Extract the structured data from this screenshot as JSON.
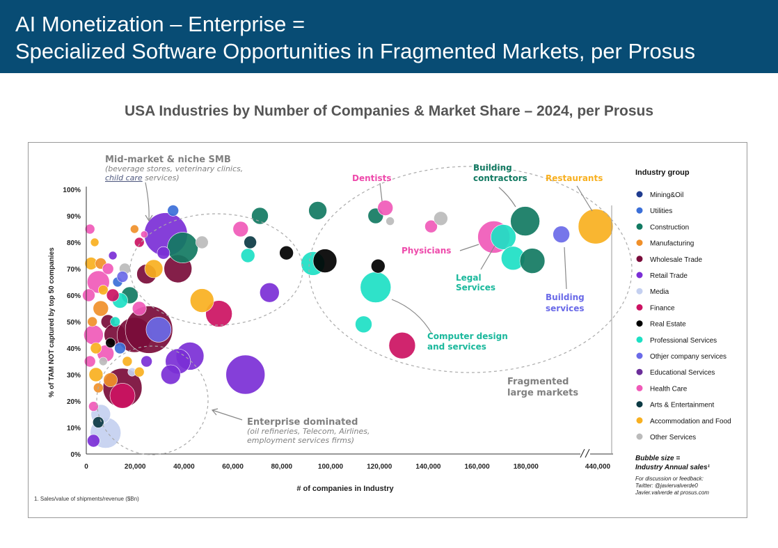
{
  "header": {
    "line1": "AI Monetization – Enterprise =",
    "line2": "Specialized Software Opportunities in Fragmented Markets, per Prosus"
  },
  "chart_data": {
    "type": "scatter",
    "title": "USA Industries by Number of Companies & Market Share – 2024, per Prosus",
    "xlabel": "# of companies in Industry",
    "ylabel": "% of TAM NOT captured by top 50 companies",
    "x_ticks": [
      "0",
      "20,000",
      "40,000",
      "60,000",
      "80,000",
      "100,000",
      "120,000",
      "140,000",
      "160,000",
      "180,000",
      "440,000"
    ],
    "y_ticks": [
      "0%",
      "10%",
      "20%",
      "30%",
      "40%",
      "50%",
      "60%",
      "70%",
      "80%",
      "90%",
      "100%"
    ],
    "xlim": [
      0,
      440000
    ],
    "ylim": [
      0,
      100
    ],
    "grid": false,
    "legend_title": "Industry group",
    "legend_position": "right",
    "series": [
      {
        "name": "Mining&Oil",
        "color": "#1f3b8f"
      },
      {
        "name": "Utilities",
        "color": "#3b6fd8"
      },
      {
        "name": "Construction",
        "color": "#127a62"
      },
      {
        "name": "Manufacturing",
        "color": "#f0902a"
      },
      {
        "name": "Wholesale Trade",
        "color": "#7a0c3a"
      },
      {
        "name": "Retail Trade",
        "color": "#7b2fd6"
      },
      {
        "name": "Media",
        "color": "#c4d0f0"
      },
      {
        "name": "Finance",
        "color": "#cc1262"
      },
      {
        "name": "Real Estate",
        "color": "#000000"
      },
      {
        "name": "Professional Services",
        "color": "#1de0c4"
      },
      {
        "name": "Othjer company services",
        "color": "#6a6ae8"
      },
      {
        "name": "Educational Services",
        "color": "#6b2e9a"
      },
      {
        "name": "Health Care",
        "color": "#f05ab8"
      },
      {
        "name": "Arts & Entertainment",
        "color": "#0c3a44"
      },
      {
        "name": "Accommodation and Food",
        "color": "#f8b020"
      },
      {
        "name": "Other Services",
        "color": "#bbbbbb"
      }
    ],
    "bubbles": [
      {
        "x": 5000,
        "y": 65,
        "r": 16,
        "s": 12
      },
      {
        "x": 3000,
        "y": 45,
        "r": 14,
        "s": 12
      },
      {
        "x": 8000,
        "y": 38,
        "r": 12,
        "s": 12
      },
      {
        "x": 4000,
        "y": 30,
        "r": 10,
        "s": 14
      },
      {
        "x": 6000,
        "y": 55,
        "r": 11,
        "s": 3
      },
      {
        "x": 2000,
        "y": 72,
        "r": 9,
        "s": 14
      },
      {
        "x": 9000,
        "y": 50,
        "r": 10,
        "s": 4
      },
      {
        "x": 12000,
        "y": 45,
        "r": 16,
        "s": 4
      },
      {
        "x": 15000,
        "y": 25,
        "r": 28,
        "s": 4
      },
      {
        "x": 20000,
        "y": 45,
        "r": 25,
        "s": 4
      },
      {
        "x": 26000,
        "y": 47,
        "r": 34,
        "s": 4
      },
      {
        "x": 33000,
        "y": 83,
        "r": 31,
        "s": 5
      },
      {
        "x": 38000,
        "y": 70,
        "r": 20,
        "s": 4
      },
      {
        "x": 40000,
        "y": 78,
        "r": 22,
        "s": 2
      },
      {
        "x": 43000,
        "y": 37,
        "r": 20,
        "s": 5
      },
      {
        "x": 38000,
        "y": 35,
        "r": 18,
        "s": 5
      },
      {
        "x": 35000,
        "y": 30,
        "r": 14,
        "s": 5
      },
      {
        "x": 30000,
        "y": 47,
        "r": 18,
        "s": 10
      },
      {
        "x": 66000,
        "y": 30,
        "r": 28,
        "s": 5
      },
      {
        "x": 55000,
        "y": 53,
        "r": 19,
        "s": 7
      },
      {
        "x": 48000,
        "y": 58,
        "r": 17,
        "s": 14
      },
      {
        "x": 8000,
        "y": 8,
        "r": 22,
        "s": 6
      },
      {
        "x": 6000,
        "y": 15,
        "r": 14,
        "s": 6
      },
      {
        "x": 15000,
        "y": 22,
        "r": 18,
        "s": 7
      },
      {
        "x": 10000,
        "y": 28,
        "r": 10,
        "s": 3
      },
      {
        "x": 5000,
        "y": 12,
        "r": 8,
        "s": 13
      },
      {
        "x": 3000,
        "y": 5,
        "r": 9,
        "s": 5
      },
      {
        "x": 18000,
        "y": 60,
        "r": 12,
        "s": 2
      },
      {
        "x": 14000,
        "y": 58,
        "r": 11,
        "s": 9
      },
      {
        "x": 22000,
        "y": 55,
        "r": 10,
        "s": 12
      },
      {
        "x": 25000,
        "y": 68,
        "r": 14,
        "s": 4
      },
      {
        "x": 28000,
        "y": 70,
        "r": 13,
        "s": 14
      },
      {
        "x": 32000,
        "y": 76,
        "r": 9,
        "s": 5
      },
      {
        "x": 36000,
        "y": 92,
        "r": 8,
        "s": 1
      },
      {
        "x": 48000,
        "y": 80,
        "r": 9,
        "s": 15
      },
      {
        "x": 64000,
        "y": 85,
        "r": 11,
        "s": 12
      },
      {
        "x": 67000,
        "y": 75,
        "r": 10,
        "s": 9
      },
      {
        "x": 68000,
        "y": 80,
        "r": 9,
        "s": 13
      },
      {
        "x": 72000,
        "y": 90,
        "r": 12,
        "s": 2
      },
      {
        "x": 76000,
        "y": 61,
        "r": 14,
        "s": 5
      },
      {
        "x": 83000,
        "y": 76,
        "r": 10,
        "s": 8
      },
      {
        "x": 96000,
        "y": 92,
        "r": 13,
        "s": 2
      },
      {
        "x": 94000,
        "y": 72,
        "r": 17,
        "s": 9
      },
      {
        "x": 99000,
        "y": 73,
        "r": 17,
        "s": 8
      },
      {
        "x": 115000,
        "y": 49,
        "r": 12,
        "s": 9
      },
      {
        "x": 120000,
        "y": 63,
        "r": 22,
        "s": 9
      },
      {
        "x": 121000,
        "y": 71,
        "r": 10,
        "s": 8
      },
      {
        "x": 120000,
        "y": 90,
        "r": 11,
        "s": 2
      },
      {
        "x": 124000,
        "y": 93,
        "r": 11,
        "s": 12
      },
      {
        "x": 126000,
        "y": 88,
        "r": 6,
        "s": 15
      },
      {
        "x": 131000,
        "y": 41,
        "r": 19,
        "s": 7
      },
      {
        "x": 143000,
        "y": 86,
        "r": 9,
        "s": 12
      },
      {
        "x": 147000,
        "y": 89,
        "r": 10,
        "s": 15
      },
      {
        "x": 169000,
        "y": 82,
        "r": 23,
        "s": 12
      },
      {
        "x": 173000,
        "y": 82,
        "r": 18,
        "s": 9
      },
      {
        "x": 177000,
        "y": 74,
        "r": 17,
        "s": 9
      },
      {
        "x": 182000,
        "y": 88,
        "r": 21,
        "s": 2
      },
      {
        "x": 185000,
        "y": 73,
        "r": 18,
        "s": 2
      },
      {
        "x": 197000,
        "y": 83,
        "r": 12,
        "s": 10
      },
      {
        "x": 207000,
        "y": 86,
        "r": 25,
        "s": 14
      },
      {
        "x": 1500,
        "y": 85,
        "r": 7,
        "s": 12
      },
      {
        "x": 3500,
        "y": 80,
        "r": 6,
        "s": 14
      },
      {
        "x": 1000,
        "y": 60,
        "r": 9,
        "s": 12
      },
      {
        "x": 2500,
        "y": 50,
        "r": 7,
        "s": 3
      },
      {
        "x": 4000,
        "y": 40,
        "r": 8,
        "s": 14
      },
      {
        "x": 1500,
        "y": 35,
        "r": 8,
        "s": 12
      },
      {
        "x": 6000,
        "y": 72,
        "r": 8,
        "s": 3
      },
      {
        "x": 7000,
        "y": 62,
        "r": 7,
        "s": 14
      },
      {
        "x": 9000,
        "y": 70,
        "r": 8,
        "s": 12
      },
      {
        "x": 11000,
        "y": 75,
        "r": 6,
        "s": 5
      },
      {
        "x": 13000,
        "y": 65,
        "r": 7,
        "s": 1
      },
      {
        "x": 16000,
        "y": 70,
        "r": 8,
        "s": 15
      },
      {
        "x": 20000,
        "y": 85,
        "r": 6,
        "s": 3
      },
      {
        "x": 22000,
        "y": 80,
        "r": 7,
        "s": 7
      },
      {
        "x": 24000,
        "y": 83,
        "r": 5,
        "s": 12
      },
      {
        "x": 12000,
        "y": 50,
        "r": 7,
        "s": 9
      },
      {
        "x": 14000,
        "y": 40,
        "r": 8,
        "s": 1
      },
      {
        "x": 10000,
        "y": 42,
        "r": 7,
        "s": 8
      },
      {
        "x": 7000,
        "y": 35,
        "r": 6,
        "s": 15
      },
      {
        "x": 5000,
        "y": 25,
        "r": 7,
        "s": 3
      },
      {
        "x": 3000,
        "y": 18,
        "r": 7,
        "s": 12
      },
      {
        "x": 17000,
        "y": 35,
        "r": 7,
        "s": 14
      },
      {
        "x": 19000,
        "y": 31,
        "r": 6,
        "s": 6
      },
      {
        "x": 22000,
        "y": 31,
        "r": 7,
        "s": 14
      },
      {
        "x": 25000,
        "y": 35,
        "r": 8,
        "s": 5
      },
      {
        "x": 11000,
        "y": 60,
        "r": 9,
        "s": 7
      },
      {
        "x": 15000,
        "y": 67,
        "r": 8,
        "s": 10
      }
    ]
  },
  "annotations": {
    "mid_market_title": "Mid-market & niche SMB",
    "mid_market_sub1": "(beverage stores, veterinary clinics,",
    "mid_market_sub2_link": "child care",
    "mid_market_sub2_rest": " services)",
    "enterprise_title": "Enterprise dominated",
    "enterprise_sub1": "(oil refineries, Telecom, Airlines,",
    "enterprise_sub2": "employment services firms)",
    "fragmented1": "Fragmented",
    "fragmented2": "large markets",
    "dentists": "Dentists",
    "building_contractors1": "Building",
    "building_contractors2": "contractors",
    "restaurants": "Restaurants",
    "physicians": "Physicians",
    "legal1": "Legal",
    "legal2": "Services",
    "building_services1": "Building",
    "building_services2": "services",
    "computer1": "Computer design",
    "computer2": "and services"
  },
  "notes": {
    "bubble_size1": "Bubble size =",
    "bubble_size2": "Industry Annual sales¹",
    "feedback1": "For discussion or feedback:",
    "feedback2": "Twitter: @javiervalverde0",
    "feedback3": "Javier.valverde at prosus.com",
    "footnote": "1. Sales/value of shipments/revenue ($Bn)"
  }
}
